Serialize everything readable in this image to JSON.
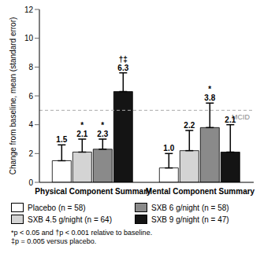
{
  "chart_data": {
    "type": "bar",
    "categories": [
      "Physical Component Summary",
      "Mental Component Summary"
    ],
    "y_label": "Change from baseline, mean (standard error)",
    "ylim": [
      0,
      12
    ],
    "yticks": [
      0,
      2,
      4,
      6,
      8,
      10,
      12
    ],
    "data_labels": true,
    "legend": "bottom",
    "reference_line": {
      "value": 5,
      "label": "MCID"
    },
    "series": [
      {
        "name": "Placebo (n = 58)",
        "color": "#ffffff",
        "values": [
          1.5,
          1.0
        ],
        "value_labels": [
          "1.5",
          "1.0"
        ],
        "errors": [
          1.1,
          1.0
        ],
        "annotations": [
          null,
          null
        ]
      },
      {
        "name": "SXB 4.5 g/night (n = 64)",
        "color": "#d4d4d4",
        "values": [
          2.1,
          2.2
        ],
        "errors": [
          0.9,
          1.4
        ],
        "annotations": [
          "*",
          null
        ]
      },
      {
        "name": "SXB 6 g/night (n = 58)",
        "color": "#8a8a8a",
        "values": [
          2.3,
          3.8
        ],
        "errors": [
          0.7,
          1.7
        ],
        "annotations": [
          "*",
          "*"
        ]
      },
      {
        "name": "SXB 9 g/night (n = 47)",
        "color": "#141414",
        "values": [
          6.3,
          2.1
        ],
        "errors": [
          1.3,
          1.9
        ],
        "annotations": [
          "†‡",
          null
        ]
      }
    ],
    "footnotes": [
      "*p < 0.05 and †p < 0.001 relative to baseline.",
      "‡p = 0.005 versus placebo."
    ]
  }
}
